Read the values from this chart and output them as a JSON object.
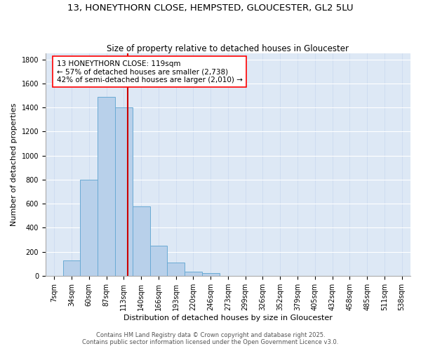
{
  "title": "13, HONEYTHORN CLOSE, HEMPSTED, GLOUCESTER, GL2 5LU",
  "subtitle": "Size of property relative to detached houses in Gloucester",
  "xlabel": "Distribution of detached houses by size in Gloucester",
  "ylabel": "Number of detached properties",
  "categories": [
    "7sqm",
    "34sqm",
    "60sqm",
    "87sqm",
    "113sqm",
    "140sqm",
    "166sqm",
    "193sqm",
    "220sqm",
    "246sqm",
    "273sqm",
    "299sqm",
    "326sqm",
    "352sqm",
    "379sqm",
    "405sqm",
    "432sqm",
    "458sqm",
    "485sqm",
    "511sqm",
    "538sqm"
  ],
  "bar_values": [
    0,
    130,
    800,
    1490,
    1400,
    575,
    250,
    110,
    35,
    20,
    0,
    0,
    0,
    0,
    0,
    0,
    0,
    0,
    0,
    0,
    0
  ],
  "bar_color": "#b8d0ea",
  "bar_edge_color": "#6aaad4",
  "vline_color": "#cc0000",
  "vline_pos": 4.22,
  "annotation_text": "13 HONEYTHORN CLOSE: 119sqm\n← 57% of detached houses are smaller (2,738)\n42% of semi-detached houses are larger (2,010) →",
  "annotation_box_color": "white",
  "annotation_box_edge_color": "red",
  "ylim": [
    0,
    1850
  ],
  "yticks": [
    0,
    200,
    400,
    600,
    800,
    1000,
    1200,
    1400,
    1600,
    1800
  ],
  "background_color": "#dde8f5",
  "grid_color": "#c8d8ee",
  "footer_line1": "Contains HM Land Registry data © Crown copyright and database right 2025.",
  "footer_line2": "Contains public sector information licensed under the Open Government Licence v3.0.",
  "title_fontsize": 9.5,
  "subtitle_fontsize": 8.5,
  "xlabel_fontsize": 8,
  "ylabel_fontsize": 8,
  "tick_fontsize": 7,
  "annotation_fontsize": 7.5,
  "footer_fontsize": 6
}
